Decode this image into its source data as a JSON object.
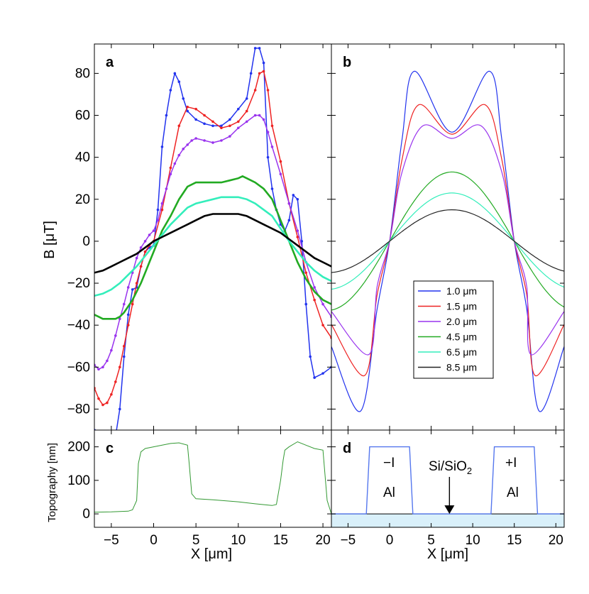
{
  "chart_data": [
    {
      "panel": "a",
      "type": "line",
      "ylabel": "B [μT]",
      "xlim": [
        -7,
        21
      ],
      "ylim": [
        -90,
        94
      ],
      "yticks": [
        -80,
        -60,
        -40,
        -20,
        0,
        20,
        40,
        60,
        80
      ],
      "series": [
        {
          "color": "#2233ee",
          "markers": true,
          "x": [
            -7,
            -6.5,
            -6,
            -5.5,
            -5,
            -4.5,
            -4,
            -3.5,
            -3,
            -2.5,
            -2,
            -1.5,
            -1,
            -0.5,
            0,
            0.5,
            1,
            1.5,
            2,
            2.5,
            3,
            3.5,
            4,
            5,
            6,
            7,
            8,
            9,
            10,
            11,
            11.5,
            12,
            12.5,
            13,
            13.5,
            14,
            14.5,
            15,
            15.5,
            16,
            16.5,
            17,
            17.5,
            18,
            18.5,
            19,
            20,
            21
          ],
          "y": [
            -90,
            -95,
            -97,
            -98,
            -97,
            -93,
            -80,
            -55,
            -35,
            -23,
            -22,
            -12,
            -5,
            -3,
            -2,
            15,
            45,
            60,
            72,
            80,
            76,
            68,
            62,
            58,
            56,
            55,
            55,
            58,
            63,
            68,
            80,
            92,
            92,
            85,
            40,
            25,
            15,
            8,
            5,
            10,
            22,
            20,
            0,
            -30,
            -55,
            -65,
            -63,
            -60
          ]
        },
        {
          "color": "#ee2222",
          "markers": true,
          "x": [
            -7,
            -6.5,
            -6,
            -5.5,
            -5,
            -4.5,
            -4,
            -3.5,
            -3,
            -2.5,
            -2,
            -1.5,
            -1,
            -0.5,
            0,
            1,
            2,
            3,
            4,
            5,
            6,
            7,
            8,
            9,
            10,
            11,
            12,
            12.5,
            13,
            13.5,
            14,
            15,
            16,
            17,
            18,
            19,
            20,
            21
          ],
          "y": [
            -70,
            -75,
            -78,
            -77,
            -73,
            -67,
            -60,
            -50,
            -40,
            -30,
            -20,
            -12,
            -5,
            -2,
            0,
            15,
            35,
            55,
            64,
            63,
            60,
            57,
            54,
            55,
            57,
            62,
            72,
            80,
            81,
            72,
            55,
            38,
            18,
            2,
            -15,
            -28,
            -40,
            -46
          ]
        },
        {
          "color": "#9933ee",
          "markers": true,
          "x": [
            -7,
            -6.5,
            -6,
            -5.5,
            -5,
            -4.5,
            -4,
            -3.5,
            -3,
            -2.5,
            -2,
            -1.5,
            -1,
            -0.5,
            0,
            0.5,
            1,
            1.5,
            2,
            2.5,
            3,
            3.5,
            4,
            4.5,
            5,
            6,
            7,
            8,
            9,
            10,
            11,
            12,
            12.5,
            13,
            13.5,
            14,
            15,
            16,
            17,
            18,
            19,
            20,
            21
          ],
          "y": [
            -59,
            -61,
            -60,
            -57,
            -52,
            -45,
            -37,
            -30,
            -22,
            -15,
            -8,
            -3,
            0,
            3,
            5,
            10,
            18,
            25,
            32,
            37,
            41,
            44,
            46,
            48,
            49,
            48,
            47,
            48,
            50,
            54,
            57,
            60,
            60,
            58,
            52,
            45,
            32,
            18,
            5,
            -10,
            -22,
            -30,
            -36
          ]
        },
        {
          "color": "#22aa22",
          "markers": false,
          "x": [
            -7,
            -6.5,
            -6,
            -5.5,
            -5,
            -4.5,
            -4,
            -3.5,
            -3,
            -2.5,
            -2,
            -1.5,
            -1,
            -0.5,
            0,
            1,
            2,
            3,
            4,
            5,
            6,
            7,
            8,
            9,
            10,
            10.5,
            11,
            12,
            13,
            14,
            15,
            16,
            17,
            18,
            19,
            20,
            21
          ],
          "y": [
            -35,
            -36,
            -37,
            -37,
            -37,
            -37,
            -36,
            -34,
            -31,
            -28,
            -24,
            -20,
            -15,
            -10,
            -5,
            5,
            12,
            20,
            26,
            28,
            28,
            28,
            28,
            29,
            30,
            31,
            30,
            28,
            25,
            20,
            10,
            0,
            -10,
            -18,
            -24,
            -28,
            -30
          ]
        },
        {
          "color": "#33eebb",
          "markers": false,
          "x": [
            -7,
            -6,
            -5,
            -4,
            -3,
            -2,
            -1,
            0,
            1,
            2,
            3,
            4,
            5,
            6,
            7,
            8,
            9,
            10,
            11,
            12,
            13,
            14,
            15,
            16,
            17,
            18,
            19,
            20,
            21
          ],
          "y": [
            -26,
            -25,
            -23,
            -20,
            -16,
            -12,
            -7,
            -2,
            3,
            8,
            12,
            16,
            18,
            19,
            20,
            21,
            21,
            21,
            20,
            18,
            15,
            12,
            6,
            0,
            -5,
            -10,
            -14,
            -17,
            -19
          ]
        },
        {
          "color": "#000000",
          "markers": false,
          "x": [
            -7,
            -6,
            -5,
            -4,
            -3,
            -2,
            -1,
            0,
            1,
            2,
            3,
            4,
            5,
            6,
            7,
            8,
            9,
            10,
            11,
            12,
            13,
            14,
            15,
            16,
            17,
            18,
            19,
            20,
            21
          ],
          "y": [
            -15,
            -14,
            -12,
            -10,
            -8,
            -6,
            -3,
            0,
            2,
            4,
            6,
            8,
            10,
            12,
            13,
            13,
            13,
            13,
            12,
            10,
            8,
            6,
            4,
            1,
            -2,
            -5,
            -8,
            -10,
            -12
          ]
        }
      ]
    },
    {
      "panel": "b",
      "type": "line",
      "xlim": [
        -7,
        21
      ],
      "ylim": [
        -90,
        94
      ],
      "legend_placement": "center-right",
      "series": [
        {
          "name": "1.0 μm",
          "color": "#2233ee",
          "peak_x": [
            3,
            12
          ],
          "peak": 81,
          "center": 52,
          "trough": -81,
          "trough_x": [
            -3.5,
            18
          ]
        },
        {
          "name": "1.5 μm",
          "color": "#ee2222",
          "peak_x": [
            3.5,
            11.5
          ],
          "peak": 65,
          "center": 51,
          "trough": -64,
          "trough_x": [
            -3,
            17.5
          ]
        },
        {
          "name": "2.0 μm",
          "color": "#9933ee",
          "peak_x": [
            4,
            11
          ],
          "peak": 55,
          "center": 49,
          "trough": -54,
          "trough_x": [
            -2.5,
            17
          ]
        },
        {
          "name": "4.5 μm",
          "color": "#22aa22",
          "peak_x": [
            7.5,
            7.5
          ],
          "peak": 33,
          "center": 33,
          "trough": -33,
          "trough_x": [
            -7,
            21
          ]
        },
        {
          "name": "6.5 μm",
          "color": "#33eebb",
          "peak_x": [
            7.5,
            7.5
          ],
          "peak": 23,
          "center": 23,
          "trough": -22,
          "trough_x": [
            -7,
            21
          ]
        },
        {
          "name": "8.5 μm",
          "color": "#222222",
          "peak_x": [
            7.5,
            7.5
          ],
          "peak": 15,
          "center": 15,
          "trough": -15,
          "trough_x": [
            -7,
            21
          ]
        }
      ]
    },
    {
      "panel": "c",
      "type": "line",
      "xlabel": "X [μm]",
      "ylabel": "Topography [nm]",
      "xlim": [
        -7,
        21
      ],
      "ylim": [
        -40,
        250
      ],
      "xticks": [
        -5,
        0,
        5,
        10,
        15,
        20
      ],
      "yticks": [
        0,
        100,
        200
      ],
      "series": [
        {
          "color": "#339933",
          "x": [
            -7,
            -5,
            -3,
            -2.5,
            -2,
            -1.8,
            -1.5,
            -1,
            0,
            1,
            2,
            3,
            4,
            4.2,
            4.5,
            5,
            7,
            10,
            12,
            14,
            14.5,
            15,
            15.3,
            15.5,
            16,
            17,
            18,
            19,
            20,
            20.5,
            21
          ],
          "y": [
            5,
            6,
            8,
            12,
            40,
            150,
            185,
            195,
            200,
            205,
            210,
            212,
            205,
            150,
            60,
            45,
            42,
            36,
            30,
            25,
            28,
            100,
            160,
            190,
            200,
            215,
            205,
            195,
            190,
            40,
            0
          ]
        }
      ]
    },
    {
      "panel": "d",
      "type": "line",
      "xlabel": "X [μm]",
      "xlim": [
        -7,
        21
      ],
      "ylim": [
        -40,
        250
      ],
      "xticks": [
        -5,
        0,
        5,
        10,
        15,
        20
      ],
      "series": [
        {
          "color": "#5577ee",
          "x": [
            -7,
            -2.8,
            -2.4,
            2.4,
            2.8,
            12.2,
            12.6,
            17.4,
            17.8,
            21
          ],
          "y": [
            0,
            0,
            200,
            200,
            0,
            0,
            200,
            200,
            0,
            0
          ]
        }
      ],
      "annotations": {
        "left_sign": "−I",
        "left_material": "Al",
        "right_sign": "+I",
        "right_material": "Al",
        "substrate": "Si/SiO",
        "substrate_sub": "2"
      },
      "colors": {
        "substrate": "#d9f0fa"
      }
    }
  ],
  "panel_labels": {
    "a": "a",
    "b": "b",
    "c": "c",
    "d": "d"
  }
}
